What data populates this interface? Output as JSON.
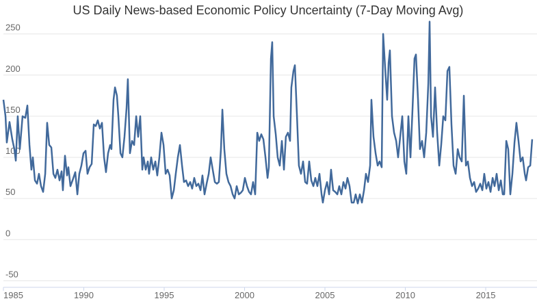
{
  "chart_data": {
    "type": "line",
    "title": "US Daily News-based Economic Policy Uncertainty (7-Day Moving Avg)",
    "color": "#41699b",
    "grid": true,
    "xlim": [
      1985,
      2018.19
    ],
    "ylim": [
      -58,
      268
    ],
    "xticks": [
      1985,
      1990,
      1995,
      2000,
      2005,
      2010,
      2015
    ],
    "yticks": [
      -50,
      0,
      50,
      100,
      150,
      200,
      250
    ],
    "x": [
      1985,
      1985.13,
      1985.21,
      1985.38,
      1985.55,
      1985.68,
      1985.77,
      1985.89,
      1986.02,
      1986.19,
      1986.36,
      1986.49,
      1986.62,
      1986.74,
      1986.83,
      1986.96,
      1987.09,
      1987.21,
      1987.34,
      1987.47,
      1987.6,
      1987.72,
      1987.85,
      1987.98,
      1988.11,
      1988.23,
      1988.36,
      1988.49,
      1988.62,
      1988.7,
      1988.83,
      1988.96,
      1989.04,
      1989.17,
      1989.3,
      1989.47,
      1989.6,
      1989.72,
      1989.85,
      1989.98,
      1990.11,
      1990.23,
      1990.36,
      1990.49,
      1990.62,
      1990.74,
      1990.87,
      1991,
      1991.13,
      1991.26,
      1991.38,
      1991.51,
      1991.64,
      1991.72,
      1991.85,
      1991.94,
      1992.06,
      1992.15,
      1992.28,
      1992.4,
      1992.53,
      1992.66,
      1992.74,
      1992.87,
      1993,
      1993.13,
      1993.26,
      1993.38,
      1993.51,
      1993.64,
      1993.72,
      1993.85,
      1993.98,
      1994.06,
      1994.19,
      1994.32,
      1994.45,
      1994.57,
      1994.7,
      1994.83,
      1994.96,
      1995.09,
      1995.21,
      1995.34,
      1995.47,
      1995.6,
      1995.72,
      1995.85,
      1995.98,
      1996.11,
      1996.23,
      1996.36,
      1996.49,
      1996.62,
      1996.74,
      1996.87,
      1997,
      1997.13,
      1997.26,
      1997.38,
      1997.51,
      1997.64,
      1997.77,
      1997.89,
      1998.02,
      1998.15,
      1998.28,
      1998.4,
      1998.53,
      1998.62,
      1998.74,
      1998.87,
      1999,
      1999.13,
      1999.26,
      1999.38,
      1999.51,
      1999.64,
      1999.77,
      1999.89,
      2000.02,
      2000.15,
      2000.28,
      2000.4,
      2000.53,
      2000.66,
      2000.79,
      2000.91,
      2001.04,
      2001.17,
      2001.3,
      2001.43,
      2001.51,
      2001.64,
      2001.72,
      2001.81,
      2001.94,
      2002.06,
      2002.19,
      2002.32,
      2002.45,
      2002.57,
      2002.7,
      2002.83,
      2002.91,
      2003.04,
      2003.13,
      2003.26,
      2003.38,
      2003.51,
      2003.64,
      2003.77,
      2003.89,
      2004.02,
      2004.15,
      2004.28,
      2004.4,
      2004.53,
      2004.66,
      2004.79,
      2004.87,
      2005,
      2005.13,
      2005.26,
      2005.38,
      2005.51,
      2005.64,
      2005.77,
      2005.89,
      2006.02,
      2006.15,
      2006.28,
      2006.4,
      2006.53,
      2006.66,
      2006.79,
      2006.91,
      2007.04,
      2007.17,
      2007.3,
      2007.43,
      2007.55,
      2007.68,
      2007.81,
      2007.89,
      2008.02,
      2008.15,
      2008.28,
      2008.4,
      2008.53,
      2008.62,
      2008.74,
      2008.87,
      2008.96,
      2009.04,
      2009.17,
      2009.3,
      2009.43,
      2009.55,
      2009.68,
      2009.81,
      2009.94,
      2010.06,
      2010.19,
      2010.32,
      2010.45,
      2010.57,
      2010.66,
      2010.79,
      2010.91,
      2011.04,
      2011.17,
      2011.3,
      2011.43,
      2011.51,
      2011.6,
      2011.72,
      2011.85,
      2011.98,
      2012.11,
      2012.23,
      2012.36,
      2012.49,
      2012.62,
      2012.74,
      2012.87,
      2013,
      2013.13,
      2013.26,
      2013.38,
      2013.51,
      2013.64,
      2013.77,
      2013.89,
      2014.02,
      2014.15,
      2014.28,
      2014.4,
      2014.53,
      2014.66,
      2014.79,
      2014.91,
      2015.04,
      2015.17,
      2015.3,
      2015.43,
      2015.55,
      2015.68,
      2015.81,
      2015.94,
      2016.06,
      2016.15,
      2016.28,
      2016.4,
      2016.53,
      2016.66,
      2016.79,
      2016.91,
      2017.04,
      2017.17,
      2017.3,
      2017.43,
      2017.51,
      2017.64,
      2017.77,
      2017.89
    ],
    "values": [
      170,
      150,
      118,
      143,
      122,
      110,
      96,
      150,
      110,
      150,
      148,
      163,
      115,
      85,
      100,
      72,
      68,
      80,
      65,
      58,
      80,
      142,
      115,
      112,
      80,
      75,
      85,
      72,
      83,
      60,
      102,
      78,
      88,
      65,
      72,
      82,
      55,
      80,
      90,
      105,
      108,
      80,
      88,
      92,
      140,
      138,
      145,
      135,
      142,
      100,
      82,
      105,
      115,
      110,
      170,
      185,
      175,
      150,
      105,
      100,
      125,
      160,
      195,
      105,
      120,
      115,
      150,
      125,
      150,
      85,
      100,
      85,
      95,
      80,
      100,
      85,
      95,
      78,
      100,
      130,
      115,
      80,
      85,
      78,
      50,
      60,
      80,
      100,
      115,
      90,
      70,
      72,
      65,
      70,
      62,
      75,
      65,
      68,
      60,
      78,
      55,
      68,
      80,
      100,
      85,
      70,
      68,
      70,
      110,
      158,
      110,
      80,
      70,
      65,
      55,
      50,
      65,
      55,
      57,
      60,
      75,
      65,
      58,
      55,
      70,
      55,
      130,
      120,
      128,
      122,
      100,
      75,
      88,
      220,
      240,
      150,
      128,
      100,
      90,
      120,
      85,
      125,
      130,
      120,
      185,
      205,
      212,
      150,
      90,
      80,
      95,
      70,
      68,
      95,
      72,
      65,
      75,
      65,
      80,
      55,
      45,
      60,
      70,
      55,
      85,
      60,
      58,
      55,
      65,
      55,
      70,
      62,
      75,
      65,
      45,
      45,
      55,
      44,
      55,
      45,
      60,
      80,
      70,
      90,
      170,
      125,
      105,
      90,
      95,
      88,
      250,
      210,
      170,
      215,
      230,
      150,
      130,
      120,
      100,
      125,
      150,
      95,
      80,
      150,
      100,
      160,
      220,
      225,
      170,
      110,
      120,
      100,
      130,
      190,
      265,
      150,
      125,
      185,
      130,
      90,
      115,
      150,
      145,
      205,
      210,
      140,
      90,
      80,
      110,
      100,
      95,
      175,
      90,
      95,
      75,
      65,
      70,
      58,
      62,
      68,
      60,
      80,
      62,
      70,
      58,
      75,
      65,
      80,
      60,
      72,
      55,
      55,
      120,
      110,
      55,
      80,
      118,
      142,
      120,
      95,
      100,
      80,
      72,
      88,
      90,
      122
    ]
  }
}
